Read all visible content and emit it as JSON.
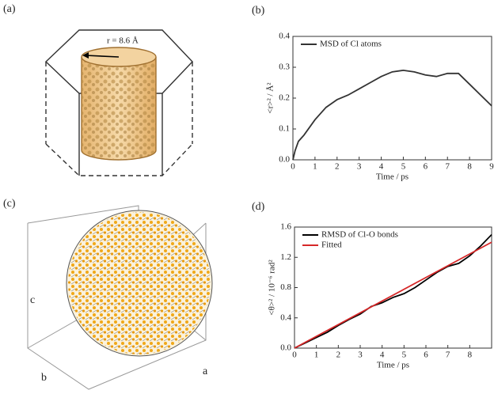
{
  "panel_labels": [
    "(a)",
    "(b)",
    "(c)",
    "(d)"
  ],
  "panel_a": {
    "annotation": "r = 8.6 Å"
  },
  "panel_c": {
    "axis_labels": [
      "a",
      "b",
      "c"
    ]
  },
  "chart_data": [
    {
      "type": "line",
      "xlabel": "Time / ps",
      "ylabel": "<r>² / Å²",
      "xlim": [
        0,
        9
      ],
      "xticks": [
        0,
        1,
        2,
        3,
        4,
        5,
        6,
        7,
        8,
        9
      ],
      "ylim": [
        0,
        0.4
      ],
      "yticks": [
        {
          "value": 0,
          "label": "0.0"
        },
        0.1,
        0.2,
        0.3,
        0.4
      ],
      "legend": "upper left",
      "series": [
        {
          "name": "MSD of Cl atoms",
          "color": "#333333",
          "x": [
            0,
            0.1,
            0.25,
            0.5,
            1,
            1.5,
            2,
            2.5,
            3,
            3.5,
            4,
            4.5,
            5,
            5.5,
            6,
            6.5,
            7,
            7.5,
            8,
            8.5,
            9
          ],
          "values": [
            0,
            0.03,
            0.06,
            0.08,
            0.13,
            0.17,
            0.195,
            0.21,
            0.23,
            0.25,
            0.27,
            0.285,
            0.29,
            0.285,
            0.275,
            0.27,
            0.28,
            0.28,
            0.245,
            0.21,
            0.175
          ]
        }
      ]
    },
    {
      "type": "line",
      "xlabel": "Time / ps",
      "ylabel": "<θ>² / 10⁻⁶ rad²",
      "xlim": [
        0,
        9
      ],
      "xticks": [
        0,
        1,
        2,
        3,
        4,
        5,
        6,
        7,
        8
      ],
      "ylim": [
        0,
        1.6
      ],
      "yticks": [
        {
          "value": 0,
          "label": "0.0"
        },
        0.4,
        0.8,
        1.2,
        1.6
      ],
      "legend": "upper left",
      "series": [
        {
          "name": "RMSD of Cl-O bonds",
          "color": "#000000",
          "x": [
            0,
            0.5,
            1,
            1.5,
            2,
            2.5,
            3,
            3.5,
            4,
            4.5,
            5,
            5.5,
            6,
            6.5,
            7,
            7.5,
            8,
            8.5,
            9
          ],
          "values": [
            0,
            0.07,
            0.14,
            0.21,
            0.3,
            0.38,
            0.45,
            0.55,
            0.6,
            0.67,
            0.72,
            0.8,
            0.9,
            1.0,
            1.08,
            1.12,
            1.22,
            1.35,
            1.5
          ]
        },
        {
          "name": "Fitted",
          "color": "#d62728",
          "x": [
            0,
            9
          ],
          "values": [
            0,
            1.4
          ]
        }
      ]
    }
  ]
}
